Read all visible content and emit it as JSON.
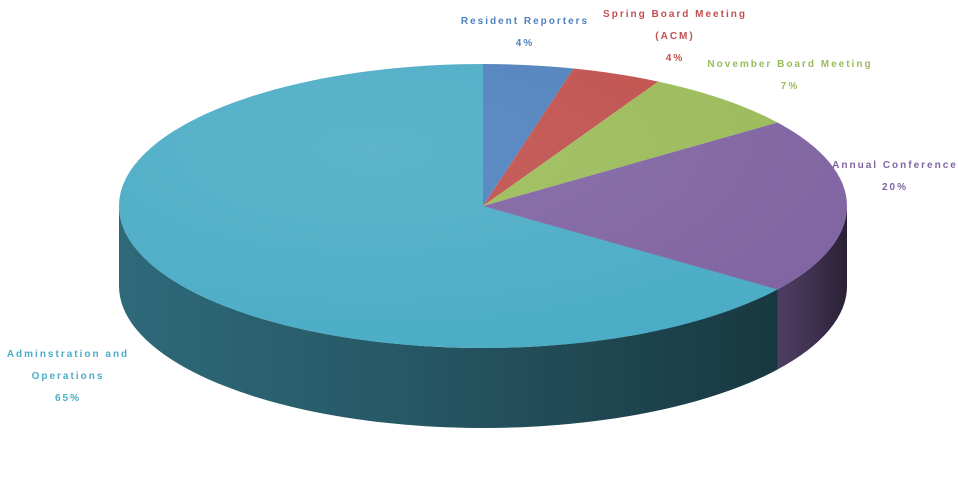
{
  "chart_data": {
    "type": "pie",
    "style": "3d",
    "title": "",
    "legend": "none",
    "slices": [
      {
        "label": [
          "Resident Reporters"
        ],
        "percent_label": "4%",
        "value": 4,
        "color": "#4F81BD"
      },
      {
        "label": [
          "Spring Board Meeting",
          "(ACM)"
        ],
        "percent_label": "4%",
        "value": 4,
        "color": "#C0504D"
      },
      {
        "label": [
          "November Board Meeting"
        ],
        "percent_label": "7%",
        "value": 7,
        "color": "#9BBB59"
      },
      {
        "label": [
          "Annual Conference"
        ],
        "percent_label": "20%",
        "value": 20,
        "color": "#8064A2"
      },
      {
        "label": [
          "Adminstration and",
          "Operations"
        ],
        "percent_label": "65%",
        "value": 65,
        "color": "#4BACC6"
      }
    ]
  }
}
